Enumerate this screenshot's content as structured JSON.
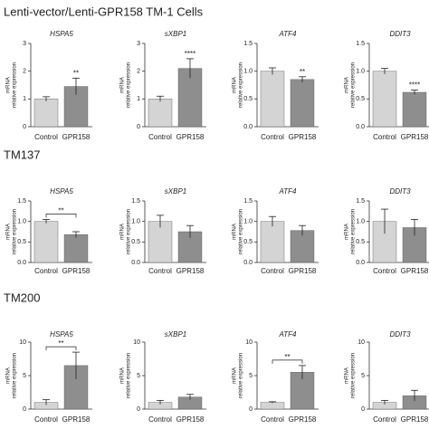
{
  "title": "Lenti-vector/Lenti-GPR158 TM-1 Cells",
  "row_labels": [
    "TM137",
    "TM200"
  ],
  "chart_data": [
    {
      "type": "bar",
      "title": "HSPA5",
      "categories": [
        "Control",
        "GPR158"
      ],
      "values": [
        1.0,
        1.45
      ],
      "errors": [
        0.08,
        0.3
      ],
      "colors": [
        "#d4d4d4",
        "#8e8e8e"
      ],
      "ylim": [
        0,
        3
      ],
      "yticks": [
        0,
        1,
        2,
        3
      ],
      "ylabel": [
        "mRNA",
        "relative expression"
      ],
      "annotation": "**",
      "bracket": false
    },
    {
      "type": "bar",
      "title": "sXBP1",
      "categories": [
        "Control",
        "GPR158"
      ],
      "values": [
        1.0,
        2.1
      ],
      "errors": [
        0.1,
        0.35
      ],
      "colors": [
        "#d4d4d4",
        "#8e8e8e"
      ],
      "ylim": [
        0,
        3
      ],
      "yticks": [
        0,
        1,
        2,
        3
      ],
      "ylabel": [
        "mRNA",
        "relative expression"
      ],
      "annotation": "****",
      "bracket": false
    },
    {
      "type": "bar",
      "title": "ATF4",
      "categories": [
        "Control",
        "GPR158"
      ],
      "values": [
        1.0,
        0.85
      ],
      "errors": [
        0.06,
        0.05
      ],
      "colors": [
        "#d4d4d4",
        "#8e8e8e"
      ],
      "ylim": [
        0,
        1.5
      ],
      "yticks": [
        {
          "value": 0,
          "label": "0.0"
        },
        0.5,
        {
          "value": 1,
          "label": "1.0"
        },
        1.5
      ],
      "ylabel": [
        "mRNA",
        "relative expression"
      ],
      "annotation": "**",
      "bracket": false
    },
    {
      "type": "bar",
      "title": "DDIT3",
      "categories": [
        "Control",
        "GPR158"
      ],
      "values": [
        1.0,
        0.62
      ],
      "errors": [
        0.05,
        0.04
      ],
      "colors": [
        "#d4d4d4",
        "#8e8e8e"
      ],
      "ylim": [
        0,
        1.5
      ],
      "yticks": [
        {
          "value": 0,
          "label": "0.0"
        },
        0.5,
        {
          "value": 1,
          "label": "1.0"
        },
        1.5
      ],
      "ylabel": [
        "mRNA",
        "relative expression"
      ],
      "annotation": "****",
      "bracket": false
    },
    {
      "type": "bar",
      "title": "HSPA5",
      "categories": [
        "Control",
        "GPR158"
      ],
      "values": [
        1.0,
        0.68
      ],
      "errors": [
        0.05,
        0.07
      ],
      "colors": [
        "#d4d4d4",
        "#8e8e8e"
      ],
      "ylim": [
        0,
        1.5
      ],
      "yticks": [
        {
          "value": 0,
          "label": "0.0"
        },
        0.5,
        {
          "value": 1,
          "label": "1.0"
        },
        1.5
      ],
      "ylabel": [
        "mRNA",
        "relative expression"
      ],
      "annotation": "**",
      "bracket": true
    },
    {
      "type": "bar",
      "title": "sXBP1",
      "categories": [
        "Control",
        "GPR158"
      ],
      "values": [
        1.0,
        0.75
      ],
      "errors": [
        0.15,
        0.15
      ],
      "colors": [
        "#d4d4d4",
        "#8e8e8e"
      ],
      "ylim": [
        0,
        1.5
      ],
      "yticks": [
        {
          "value": 0,
          "label": "0.0"
        },
        0.5,
        {
          "value": 1,
          "label": "1.0"
        },
        1.5
      ],
      "ylabel": [
        "mRNA",
        "relative expression"
      ],
      "annotation": null,
      "bracket": false
    },
    {
      "type": "bar",
      "title": "ATF4",
      "categories": [
        "Control",
        "GPR158"
      ],
      "values": [
        1.0,
        0.78
      ],
      "errors": [
        0.12,
        0.12
      ],
      "colors": [
        "#d4d4d4",
        "#8e8e8e"
      ],
      "ylim": [
        0,
        1.5
      ],
      "yticks": [
        {
          "value": 0,
          "label": "0.0"
        },
        0.5,
        {
          "value": 1,
          "label": "1.0"
        },
        1.5
      ],
      "ylabel": [
        "mRNA",
        "relative expression"
      ],
      "annotation": null,
      "bracket": false
    },
    {
      "type": "bar",
      "title": "DDIT3",
      "categories": [
        "Control",
        "GPR158"
      ],
      "values": [
        1.0,
        0.85
      ],
      "errors": [
        0.3,
        0.2
      ],
      "colors": [
        "#d4d4d4",
        "#8e8e8e"
      ],
      "ylim": [
        0,
        1.5
      ],
      "yticks": [
        {
          "value": 0,
          "label": "0.0"
        },
        0.5,
        {
          "value": 1,
          "label": "1.0"
        },
        1.5
      ],
      "ylabel": [
        "mRNA",
        "relative expression"
      ],
      "annotation": null,
      "bracket": false
    },
    {
      "type": "bar",
      "title": "HSPA5",
      "categories": [
        "Control",
        "GPR158"
      ],
      "values": [
        1.0,
        6.5
      ],
      "errors": [
        0.4,
        2.0
      ],
      "colors": [
        "#d4d4d4",
        "#8e8e8e"
      ],
      "ylim": [
        0,
        10
      ],
      "yticks": [
        0,
        5,
        10
      ],
      "ylabel": [
        "mRNA",
        "relative expression"
      ],
      "annotation": "**",
      "bracket": true
    },
    {
      "type": "bar",
      "title": "sXBP1",
      "categories": [
        "Control",
        "GPR158"
      ],
      "values": [
        1.0,
        1.8
      ],
      "errors": [
        0.3,
        0.4
      ],
      "colors": [
        "#d4d4d4",
        "#8e8e8e"
      ],
      "ylim": [
        0,
        10
      ],
      "yticks": [
        0,
        5,
        10
      ],
      "ylabel": [
        "mRNA",
        "relative expression"
      ],
      "annotation": null,
      "bracket": false
    },
    {
      "type": "bar",
      "title": "ATF4",
      "categories": [
        "Control",
        "GPR158"
      ],
      "values": [
        1.0,
        5.5
      ],
      "errors": [
        0.1,
        1.0
      ],
      "colors": [
        "#d4d4d4",
        "#8e8e8e"
      ],
      "ylim": [
        0,
        10
      ],
      "yticks": [
        0,
        5,
        10
      ],
      "ylabel": [
        "mRNA",
        "relative expression"
      ],
      "annotation": "**",
      "bracket": true
    },
    {
      "type": "bar",
      "title": "DDIT3",
      "categories": [
        "Control",
        "GPR158"
      ],
      "values": [
        1.0,
        2.0
      ],
      "errors": [
        0.3,
        0.8
      ],
      "colors": [
        "#d4d4d4",
        "#8e8e8e"
      ],
      "ylim": [
        0,
        10
      ],
      "yticks": [
        0,
        5,
        10
      ],
      "ylabel": [
        "mRNA",
        "relative expression"
      ],
      "annotation": null,
      "bracket": false
    }
  ]
}
